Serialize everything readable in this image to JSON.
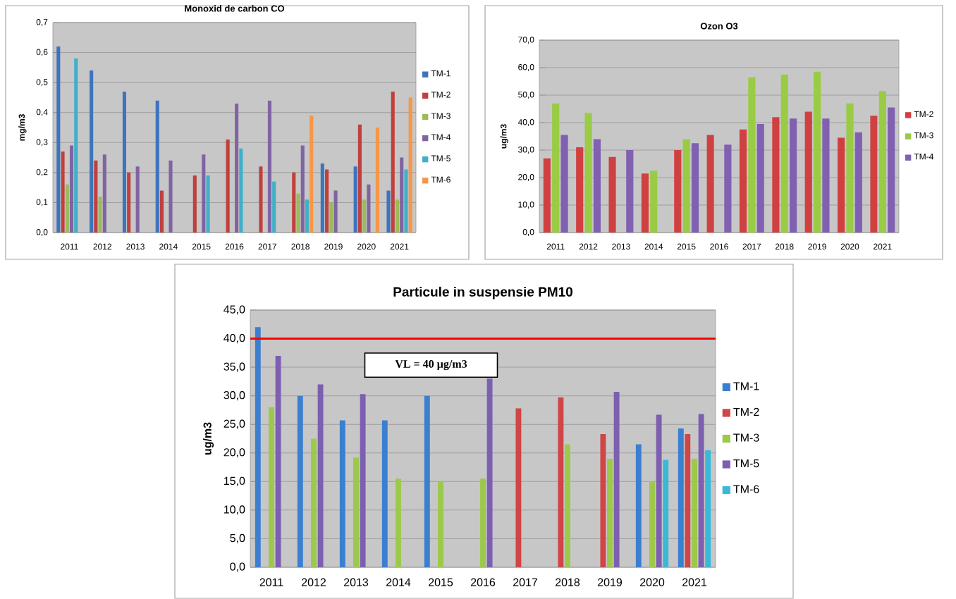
{
  "chart_data": [
    {
      "type": "bar",
      "title": "Monoxid de carbon CO",
      "ylabel": "mg/m3",
      "categories": [
        "2011",
        "2012",
        "2013",
        "2014",
        "2015",
        "2016",
        "2017",
        "2018",
        "2019",
        "2020",
        "2021"
      ],
      "series": [
        {
          "name": "TM-1",
          "color": "#3d74be",
          "values": [
            0.62,
            0.54,
            0.47,
            0.44,
            null,
            null,
            null,
            null,
            0.23,
            0.22,
            0.14
          ]
        },
        {
          "name": "TM-2",
          "color": "#c0403d",
          "values": [
            0.27,
            0.24,
            0.2,
            0.14,
            0.19,
            0.31,
            0.22,
            0.2,
            0.21,
            0.36,
            0.47
          ]
        },
        {
          "name": "TM-3",
          "color": "#9bbb59",
          "values": [
            0.16,
            0.12,
            null,
            null,
            null,
            null,
            null,
            0.13,
            0.1,
            0.11,
            0.11
          ]
        },
        {
          "name": "TM-4",
          "color": "#8064a2",
          "values": [
            0.29,
            0.26,
            0.22,
            0.24,
            0.26,
            0.43,
            0.44,
            0.29,
            0.14,
            0.16,
            0.25
          ]
        },
        {
          "name": "TM-5",
          "color": "#3fb0c9",
          "values": [
            0.58,
            null,
            null,
            null,
            0.19,
            0.28,
            0.17,
            0.11,
            null,
            null,
            0.21
          ]
        },
        {
          "name": "TM-6",
          "color": "#f79646",
          "values": [
            null,
            null,
            null,
            null,
            null,
            null,
            null,
            0.39,
            null,
            0.35,
            0.45
          ]
        }
      ],
      "ylim": [
        0,
        0.7
      ],
      "yticks": [
        {
          "value": 0,
          "label": "0,0"
        },
        {
          "value": 0.1,
          "label": "0,1"
        },
        {
          "value": 0.2,
          "label": "0,2"
        },
        {
          "value": 0.3,
          "label": "0,3"
        },
        {
          "value": 0.4,
          "label": "0,4"
        },
        {
          "value": 0.5,
          "label": "0,5"
        },
        {
          "value": 0.6,
          "label": "0,6"
        },
        {
          "value": 0.7,
          "label": "0,7"
        }
      ],
      "grid": "y",
      "legend": "right"
    },
    {
      "type": "bar",
      "title": "Ozon O3",
      "ylabel": "ug/m3",
      "categories": [
        "2011",
        "2012",
        "2013",
        "2014",
        "2015",
        "2016",
        "2017",
        "2018",
        "2019",
        "2020",
        "2021"
      ],
      "series": [
        {
          "name": "TM-2",
          "color": "#d04040",
          "values": [
            27,
            31,
            27.5,
            21.5,
            30,
            35.5,
            37.5,
            42,
            44,
            34.5,
            42.5
          ]
        },
        {
          "name": "TM-3",
          "color": "#99cc44",
          "values": [
            47,
            43.5,
            null,
            22.5,
            34,
            null,
            56.5,
            57.5,
            58.5,
            47,
            51.5
          ]
        },
        {
          "name": "TM-4",
          "color": "#8060b0",
          "values": [
            35.5,
            34,
            30,
            null,
            32.5,
            32,
            39.5,
            41.5,
            41.5,
            36.5,
            45.5
          ]
        }
      ],
      "ylim": [
        0,
        70
      ],
      "yticks": [
        {
          "value": 0,
          "label": "0,0"
        },
        {
          "value": 10,
          "label": "10,0"
        },
        {
          "value": 20,
          "label": "20,0"
        },
        {
          "value": 30,
          "label": "30,0"
        },
        {
          "value": 40,
          "label": "40,0"
        },
        {
          "value": 50,
          "label": "50,0"
        },
        {
          "value": 60,
          "label": "60,0"
        },
        {
          "value": 70,
          "label": "70,0"
        }
      ],
      "grid": "y",
      "legend": "right"
    },
    {
      "type": "bar",
      "title": "Particule in suspensie PM10",
      "ylabel": "ug/m3",
      "categories": [
        "2011",
        "2012",
        "2013",
        "2014",
        "2015",
        "2016",
        "2017",
        "2018",
        "2019",
        "2020",
        "2021"
      ],
      "series": [
        {
          "name": "TM-1",
          "color": "#3a7fd0",
          "values": [
            42,
            30,
            25.7,
            25.7,
            30,
            null,
            null,
            null,
            null,
            21.5,
            24.3
          ]
        },
        {
          "name": "TM-2",
          "color": "#d04545",
          "values": [
            null,
            null,
            null,
            null,
            null,
            null,
            27.8,
            29.7,
            23.3,
            null,
            23.3
          ]
        },
        {
          "name": "TM-3",
          "color": "#9cc94a",
          "values": [
            28,
            22.5,
            19.2,
            15.5,
            15,
            15.5,
            null,
            21.5,
            19,
            15,
            19
          ]
        },
        {
          "name": "TM-5",
          "color": "#7c5fb0",
          "values": [
            37,
            32,
            30.3,
            null,
            null,
            33,
            null,
            null,
            30.7,
            26.7,
            26.8
          ]
        },
        {
          "name": "TM-6",
          "color": "#3ab8d8",
          "values": [
            null,
            null,
            null,
            null,
            null,
            null,
            null,
            null,
            null,
            18.8,
            20.5
          ]
        }
      ],
      "ylim": [
        0,
        45
      ],
      "yticks": [
        {
          "value": 0,
          "label": "0,0"
        },
        {
          "value": 5,
          "label": "5,0"
        },
        {
          "value": 10,
          "label": "10,0"
        },
        {
          "value": 15,
          "label": "15,0"
        },
        {
          "value": 20,
          "label": "20,0"
        },
        {
          "value": 25,
          "label": "25,0"
        },
        {
          "value": 30,
          "label": "30,0"
        },
        {
          "value": 35,
          "label": "35,0"
        },
        {
          "value": 40,
          "label": "40,0"
        },
        {
          "value": 45,
          "label": "45,0"
        }
      ],
      "grid": "y",
      "legend": "right",
      "ref_lines": [
        {
          "axis": "y",
          "value": 40,
          "label": "VL = 40 µg/m3",
          "color": "#ff0000"
        }
      ]
    }
  ]
}
